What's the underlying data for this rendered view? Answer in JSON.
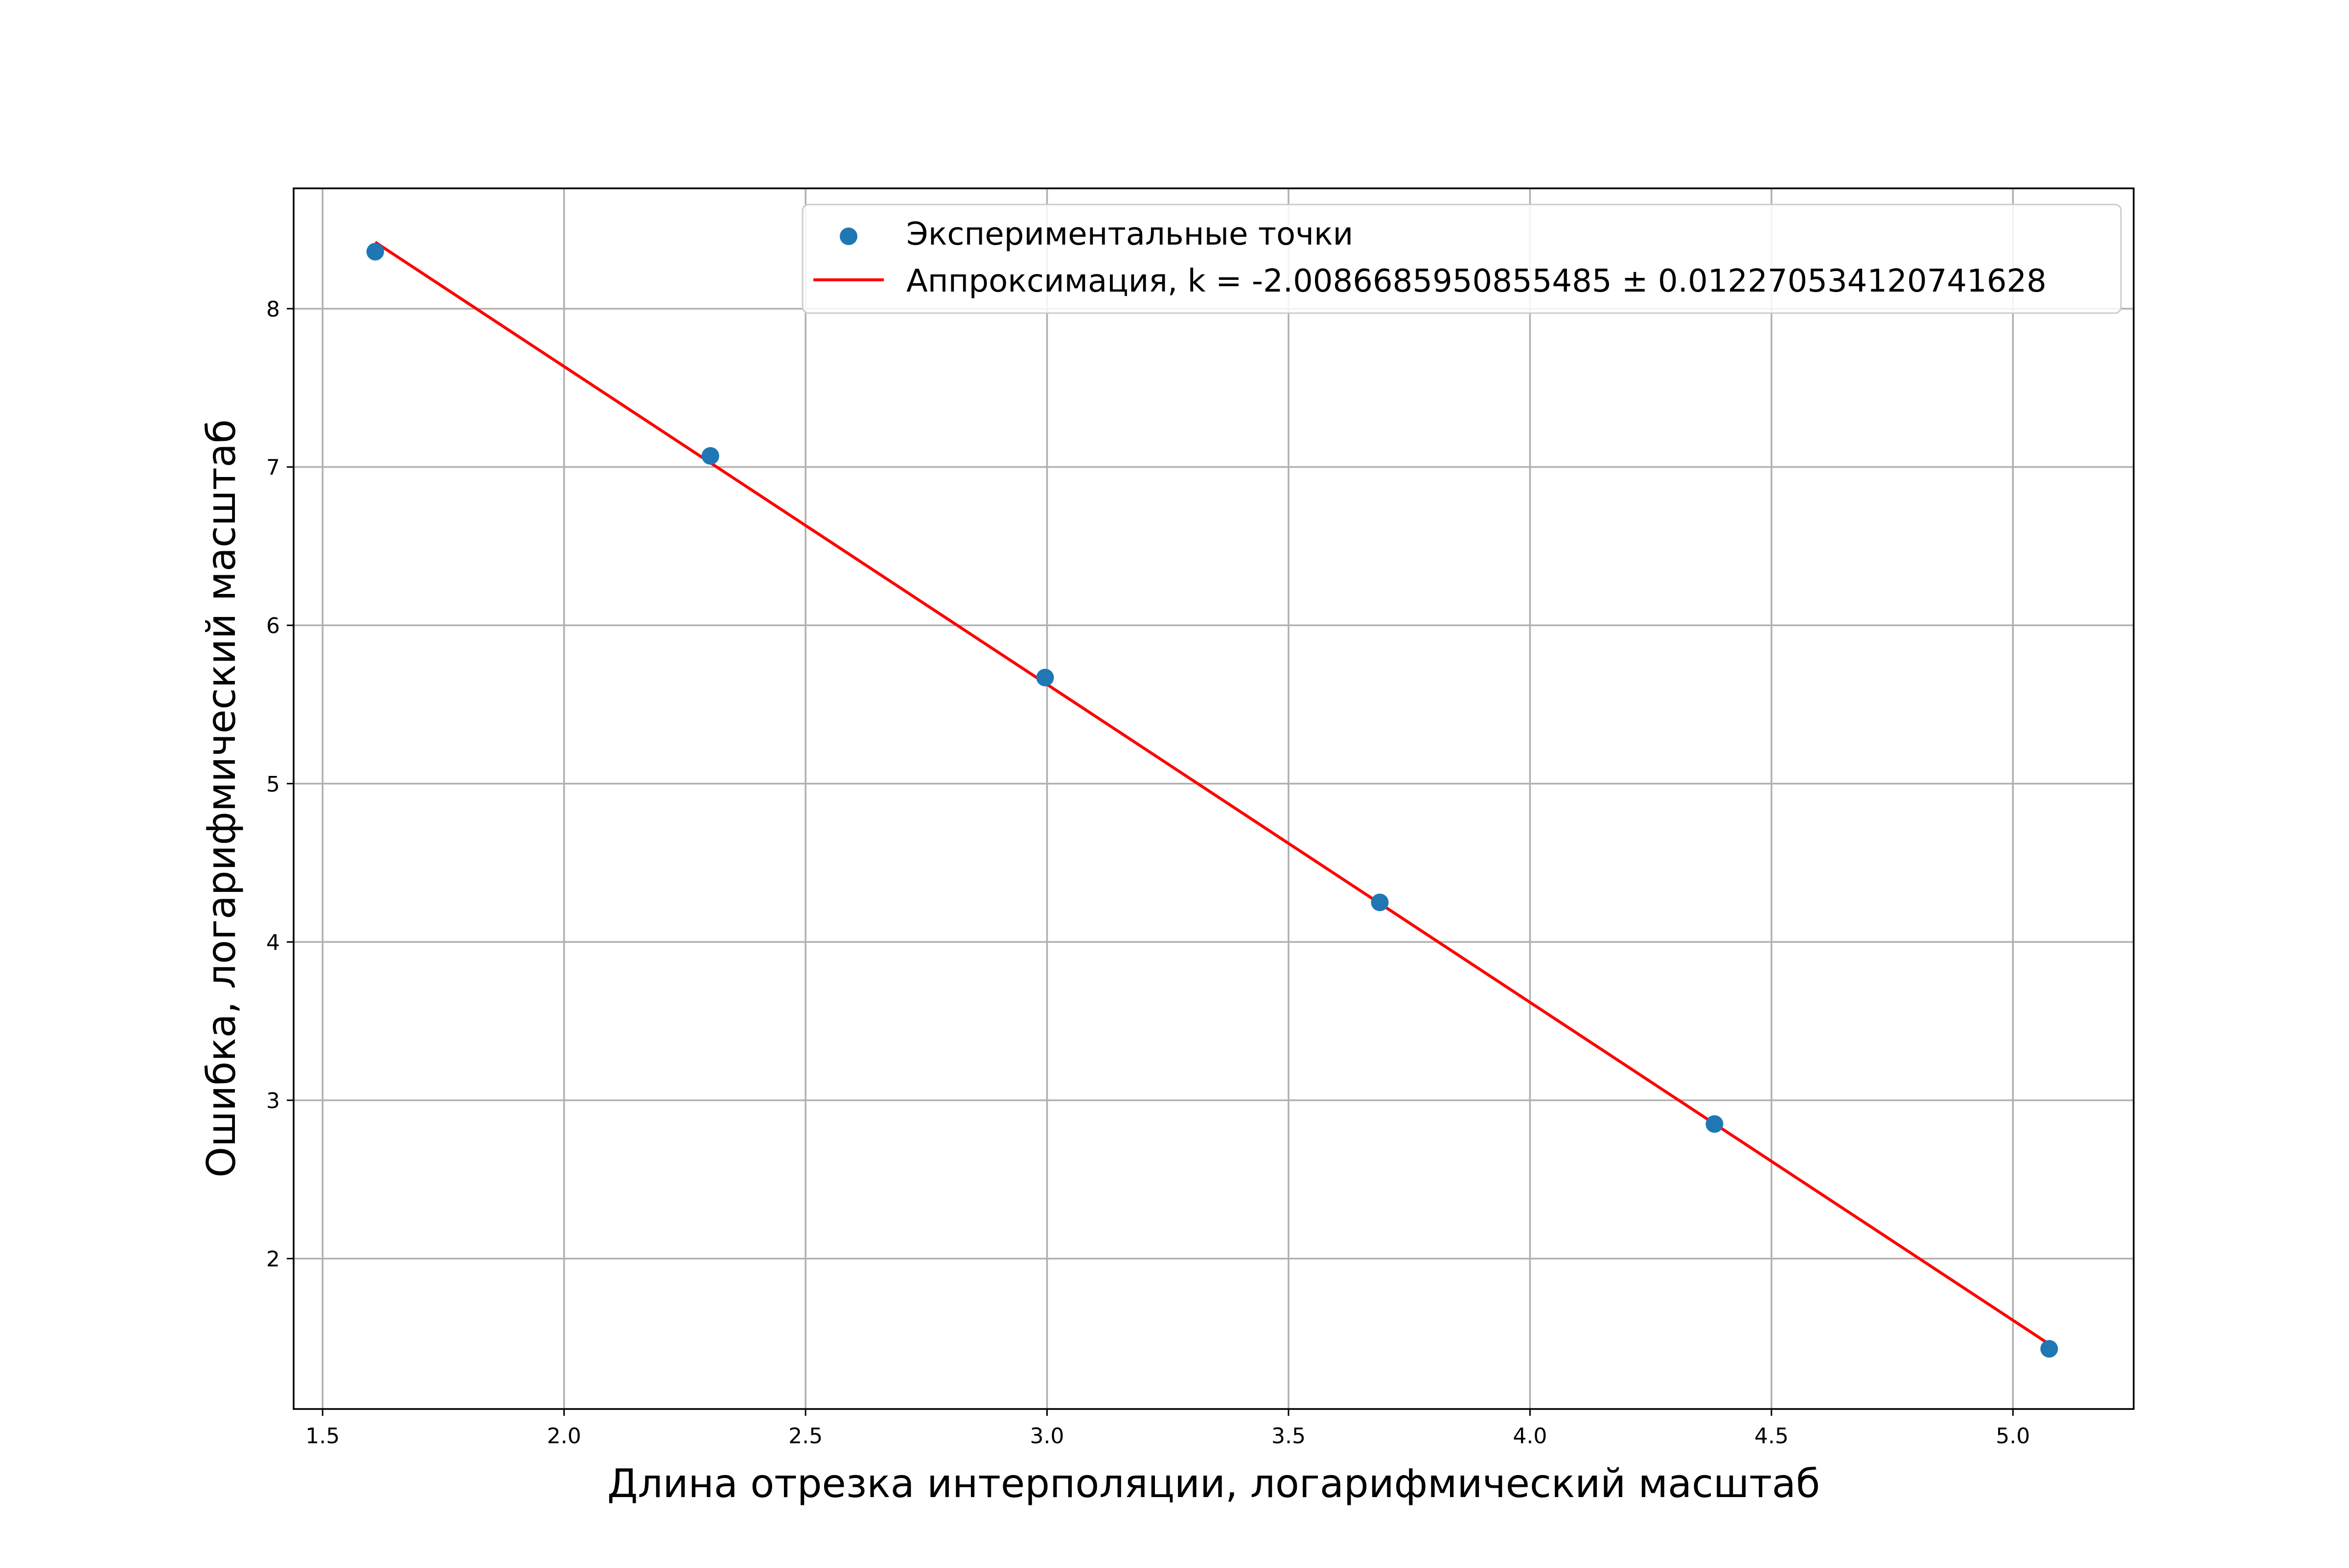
{
  "chart_data": {
    "type": "scatter",
    "xlabel": "Длина отрезка интерполяции, логарифмический масштаб",
    "ylabel": "Ошибка, логарифмический масштаб",
    "xlim": [
      1.44,
      5.25
    ],
    "ylim": [
      1.05,
      8.76
    ],
    "x_ticks": [
      1.5,
      2.0,
      2.5,
      3.0,
      3.5,
      4.0,
      4.5,
      5.0
    ],
    "x_tick_labels": [
      "1.5",
      "2.0",
      "2.5",
      "3.0",
      "3.5",
      "4.0",
      "4.5",
      "5.0"
    ],
    "y_ticks": [
      2,
      3,
      4,
      5,
      6,
      7,
      8
    ],
    "y_tick_labels": [
      "2",
      "3",
      "4",
      "5",
      "6",
      "7",
      "8"
    ],
    "grid": true,
    "legend_position": "top-right",
    "series": [
      {
        "name": "Экспериментальные точки",
        "kind": "scatter",
        "color": "#1f77b4",
        "x": [
          1.609,
          2.303,
          2.996,
          3.689,
          4.382,
          5.075
        ],
        "y": [
          8.36,
          7.07,
          5.67,
          4.25,
          2.85,
          1.43
        ]
      },
      {
        "name": "Аппроксимация, k = -2.0086685950855485 ± 0.012270534120741628",
        "kind": "line",
        "color": "#ff0000",
        "x": [
          1.609,
          5.075
        ],
        "y": [
          8.42,
          1.46
        ]
      }
    ]
  }
}
